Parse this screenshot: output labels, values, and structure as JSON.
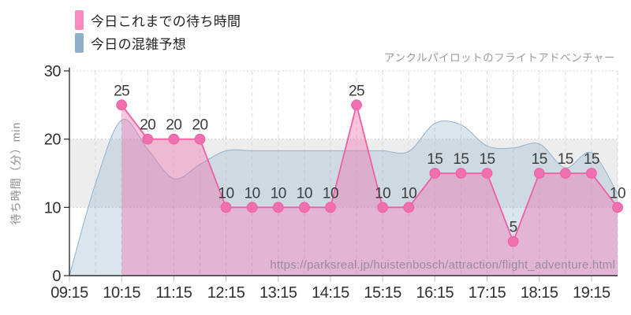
{
  "legend": {
    "items": [
      {
        "id": "actual",
        "label": "今日これまでの待ち時間",
        "color": "#f98ac0"
      },
      {
        "id": "forecast",
        "label": "今日の混雑予想",
        "color": "#8fafca"
      }
    ]
  },
  "chart_data": {
    "type": "area",
    "title": "アンクルパイロットのフライトアドベンチャー",
    "ylabel": "待ち時間（分）min",
    "ylim": [
      0,
      30
    ],
    "yticks": [
      0,
      10,
      20,
      30
    ],
    "x_interval_minutes": 30,
    "x_tick_labels": [
      "09:15",
      "10:15",
      "11:15",
      "12:15",
      "13:15",
      "14:15",
      "15:15",
      "16:15",
      "17:15",
      "18:15",
      "19:15"
    ],
    "x_tick_indices": [
      0,
      2,
      4,
      6,
      8,
      10,
      12,
      14,
      16,
      18,
      20
    ],
    "plot_band": {
      "from": 10,
      "to": 20,
      "color": "#ededed"
    },
    "grid": {
      "vertical": "dashed",
      "horizontal": "dotted"
    },
    "legend_position": "top-left",
    "series": [
      {
        "name": "今日の混雑予想",
        "type": "area-spline",
        "smooth": true,
        "markers": false,
        "data_labels": false,
        "line_color": "#94b2cd",
        "fill_color": "rgba(143,175,202,0.33)",
        "start_index": 0,
        "times": [
          "09:15",
          "09:45",
          "10:15",
          "10:45",
          "11:15",
          "11:45",
          "12:15",
          "12:45",
          "13:15",
          "13:45",
          "14:15",
          "14:45",
          "15:15",
          "15:45",
          "16:15",
          "16:45",
          "17:15",
          "17:45",
          "18:15",
          "18:45",
          "19:15",
          "19:45"
        ],
        "values": [
          0,
          13.5,
          22.8,
          18.5,
          14.2,
          16.3,
          18.3,
          18.3,
          18.3,
          18.3,
          18.3,
          18.3,
          18.3,
          18.2,
          22.3,
          22.1,
          19,
          18.7,
          19.3,
          15.8,
          18,
          12
        ]
      },
      {
        "name": "今日これまでの待ち時間",
        "type": "area-line",
        "smooth": false,
        "markers": true,
        "data_labels": true,
        "line_color": "#ef5fa7",
        "fill_color": "rgba(240,110,172,0.40)",
        "marker_color": "#f06fae",
        "start_index": 2,
        "times": [
          "10:15",
          "10:45",
          "11:15",
          "11:45",
          "12:15",
          "12:45",
          "13:15",
          "13:45",
          "14:15",
          "14:45",
          "15:15",
          "15:45",
          "16:15",
          "16:45",
          "17:15",
          "17:45",
          "18:15",
          "18:45",
          "19:15",
          "19:45"
        ],
        "values": [
          25,
          20,
          20,
          20,
          10,
          10,
          10,
          10,
          10,
          25,
          10,
          10,
          15,
          15,
          15,
          5,
          15,
          15,
          15,
          10
        ]
      }
    ],
    "watermark": "https://parksreal.jp/huistenbosch/attraction/flight_adventure.html"
  }
}
